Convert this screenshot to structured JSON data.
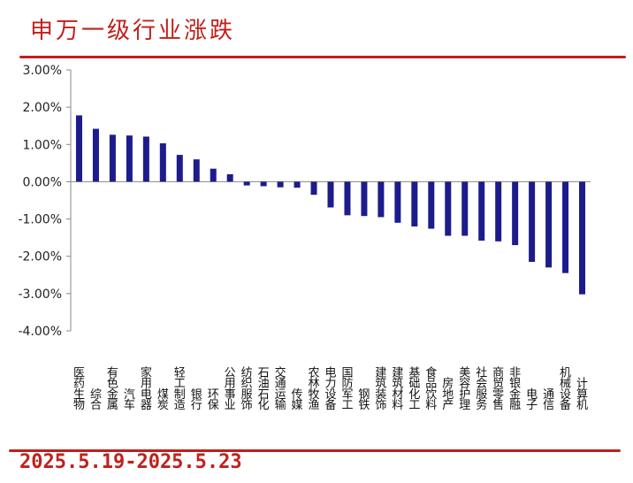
{
  "header": {
    "title": "申万一级行业涨跌"
  },
  "footer": {
    "date_range": "2025.5.19-2025.5.23"
  },
  "colors": {
    "bar": "#1c1c8c",
    "accent": "#c0201c",
    "axis": "#888888"
  },
  "chart_data": {
    "type": "bar",
    "title": "",
    "xlabel": "",
    "ylabel": "",
    "ylim": [
      -4,
      3
    ],
    "yticks": [
      3,
      2,
      1,
      0,
      -1,
      -2,
      -3,
      -4
    ],
    "ytick_labels": [
      "3.00%",
      "2.00%",
      "1.00%",
      "0.00%",
      "-1.00%",
      "-2.00%",
      "-3.00%",
      "-4.00%"
    ],
    "grid": false,
    "legend": "none",
    "categories": [
      "医药生物",
      "综合",
      "有色金属",
      "汽车",
      "家用电器",
      "煤炭",
      "轻工制造",
      "银行",
      "环保",
      "公用事业",
      "纺织服饰",
      "石油石化",
      "交通运输",
      "传媒",
      "农林牧渔",
      "电力设备",
      "国防军工",
      "钢铁",
      "建筑装饰",
      "建筑材料",
      "基础化工",
      "食品饮料",
      "房地产",
      "美容护理",
      "社会服务",
      "商贸零售",
      "非银金融",
      "电子",
      "通信",
      "机械设备",
      "计算机"
    ],
    "values": [
      1.78,
      1.42,
      1.26,
      1.24,
      1.21,
      1.03,
      0.72,
      0.6,
      0.35,
      0.2,
      -0.1,
      -0.12,
      -0.15,
      -0.16,
      -0.35,
      -0.69,
      -0.9,
      -0.92,
      -0.95,
      -1.1,
      -1.2,
      -1.26,
      -1.45,
      -1.45,
      -1.58,
      -1.6,
      -1.7,
      -2.15,
      -2.3,
      -2.45,
      -3.02
    ]
  }
}
